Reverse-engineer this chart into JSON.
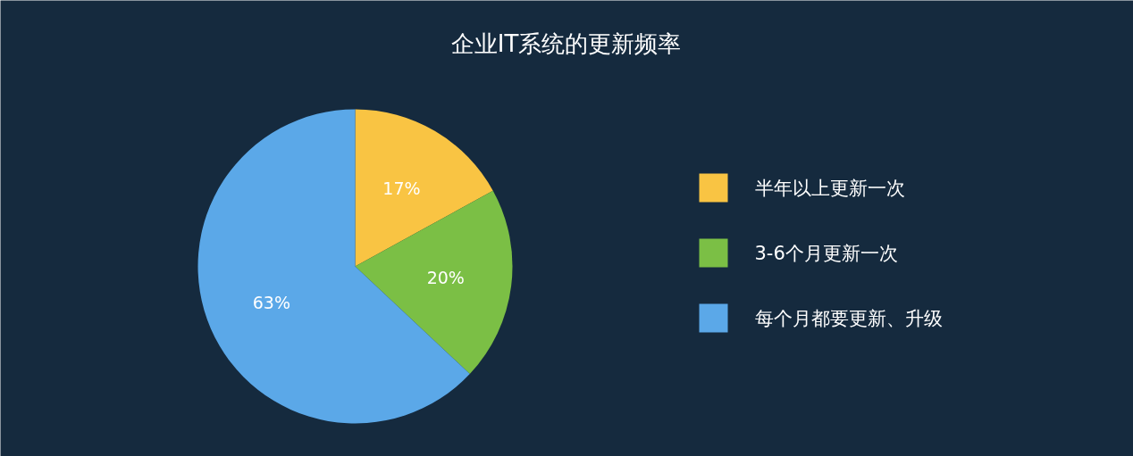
{
  "chart_data": {
    "type": "pie",
    "title": "企业IT系统的更新频率",
    "categories": [
      "半年以上更新一次",
      "3-6个月更新一次",
      "每个月都要更新、升级"
    ],
    "values": [
      17,
      20,
      63
    ],
    "colors": [
      "#f9c443",
      "#7bbf45",
      "#5ba8e8"
    ],
    "value_labels": [
      "17%",
      "20%",
      "63%"
    ],
    "legend": "right"
  }
}
